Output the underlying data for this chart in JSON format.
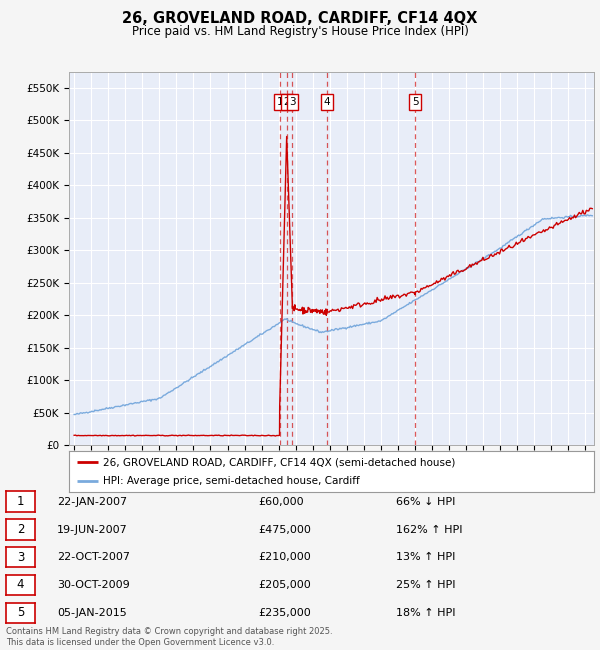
{
  "title": "26, GROVELAND ROAD, CARDIFF, CF14 4QX",
  "subtitle": "Price paid vs. HM Land Registry's House Price Index (HPI)",
  "ylim": [
    0,
    575000
  ],
  "yticks": [
    0,
    50000,
    100000,
    150000,
    200000,
    250000,
    300000,
    350000,
    400000,
    450000,
    500000,
    550000
  ],
  "ytick_labels": [
    "£0",
    "£50K",
    "£100K",
    "£150K",
    "£200K",
    "£250K",
    "£300K",
    "£350K",
    "£400K",
    "£450K",
    "£500K",
    "£550K"
  ],
  "xlim_start": 1994.7,
  "xlim_end": 2025.5,
  "fig_bg_color": "#f5f5f5",
  "plot_bg_color": "#e8edf8",
  "grid_color": "#ffffff",
  "red_line_color": "#cc0000",
  "blue_line_color": "#7aaadd",
  "transactions": [
    {
      "num": 1,
      "date_str": "22-JAN-2007",
      "date_x": 2007.06,
      "price": 60000,
      "label": "£60,000",
      "pct": "66% ↓ HPI"
    },
    {
      "num": 2,
      "date_str": "19-JUN-2007",
      "date_x": 2007.47,
      "price": 475000,
      "label": "£475,000",
      "pct": "162% ↑ HPI"
    },
    {
      "num": 3,
      "date_str": "22-OCT-2007",
      "date_x": 2007.81,
      "price": 210000,
      "label": "£210,000",
      "pct": "13% ↑ HPI"
    },
    {
      "num": 4,
      "date_str": "30-OCT-2009",
      "date_x": 2009.83,
      "price": 205000,
      "label": "£205,000",
      "pct": "25% ↑ HPI"
    },
    {
      "num": 5,
      "date_str": "05-JAN-2015",
      "date_x": 2015.01,
      "price": 235000,
      "label": "£235,000",
      "pct": "18% ↑ HPI"
    }
  ],
  "legend_line1": "26, GROVELAND ROAD, CARDIFF, CF14 4QX (semi-detached house)",
  "legend_line2": "HPI: Average price, semi-detached house, Cardiff",
  "footer": "Contains HM Land Registry data © Crown copyright and database right 2025.\nThis data is licensed under the Open Government Licence v3.0."
}
